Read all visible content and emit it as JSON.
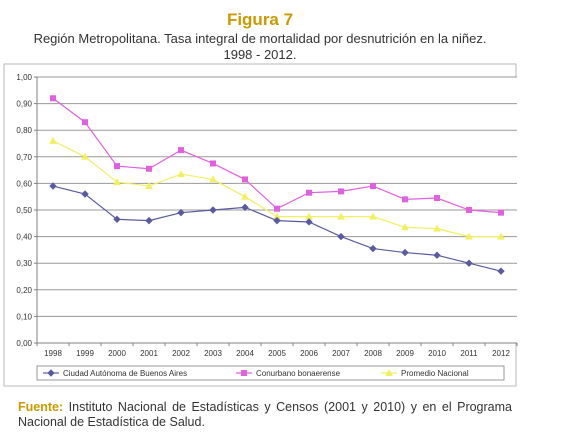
{
  "figure": {
    "title": "Figura 7",
    "subtitle_line1": "Región Metropolitana.  Tasa integral de mortalidad por desnutrición en la niñez.",
    "subtitle_line2": "1998 - 2012."
  },
  "source": {
    "label": "Fuente:",
    "text": " Instituto Nacional de Estadísticas y Censos (2001 y 2010) y en el Programa Nacional de Estadística de Salud."
  },
  "colors": {
    "caba": "#5a5aa0",
    "conurbano": "#e060e0",
    "promedio": "#f0f060",
    "title": "#cc9900"
  },
  "chart_data": {
    "type": "line",
    "categories": [
      "1998",
      "1999",
      "2000",
      "2001",
      "2002",
      "2003",
      "2004",
      "2005",
      "2006",
      "2007",
      "2008",
      "2009",
      "2010",
      "2011",
      "2012"
    ],
    "y_ticks": [
      "0,00",
      "0,10",
      "0,20",
      "0,30",
      "0,40",
      "0,50",
      "0,60",
      "0,70",
      "0,80",
      "0,90",
      "1,00"
    ],
    "ylim": [
      0,
      1
    ],
    "grid": true,
    "legend_position": "bottom",
    "series": [
      {
        "name": "Ciudad Autónoma de Buenos Aires",
        "color": "#5a5aa0",
        "marker": "diamond",
        "values": [
          0.59,
          0.56,
          0.465,
          0.46,
          0.49,
          0.5,
          0.51,
          0.46,
          0.455,
          0.4,
          0.355,
          0.34,
          0.33,
          0.3,
          0.27
        ]
      },
      {
        "name": "Conurbano bonaerense",
        "color": "#e060e0",
        "marker": "square",
        "values": [
          0.92,
          0.83,
          0.665,
          0.655,
          0.725,
          0.675,
          0.615,
          0.505,
          0.565,
          0.57,
          0.59,
          0.54,
          0.545,
          0.5,
          0.49
        ]
      },
      {
        "name": "Promedio Nacional",
        "color": "#f0f060",
        "marker": "triangle",
        "values": [
          0.76,
          0.7,
          0.605,
          0.59,
          0.635,
          0.615,
          0.55,
          0.475,
          0.475,
          0.475,
          0.475,
          0.435,
          0.43,
          0.4,
          0.4
        ]
      }
    ]
  }
}
